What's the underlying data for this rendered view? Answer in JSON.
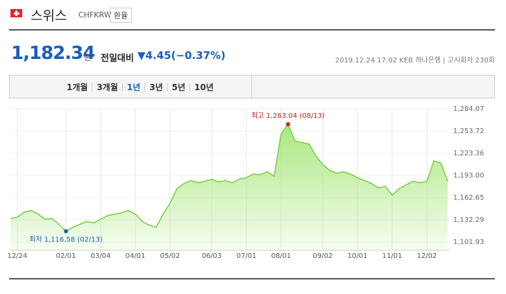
{
  "header": {
    "name": "스위스",
    "code": "CHFKRW",
    "button": "환율"
  },
  "quote": {
    "price": "1,182.34",
    "unit": "원",
    "change_label": "전일대비",
    "change": "▼4.45(−0.37%)",
    "datetime": "2019.12.24 17:02",
    "bank": "KEB 하나은행",
    "round": "고시회차 230회"
  },
  "tabs": [
    "1개월",
    "3개월",
    "1년",
    "3년",
    "5년",
    "10년"
  ],
  "chart_data": {
    "type": "area",
    "line_color": "#72cf3c",
    "fill_color": "#a6e67a",
    "grid": true,
    "categories": [
      null,
      "12/24",
      null,
      null,
      null,
      null,
      null,
      null,
      "02/01",
      null,
      null,
      null,
      null,
      "03/04",
      null,
      null,
      null,
      null,
      "04/01",
      null,
      null,
      null,
      null,
      "05/02",
      null,
      null,
      null,
      null,
      null,
      "06/03",
      null,
      null,
      null,
      null,
      "07/01",
      null,
      null,
      null,
      null,
      "08/01",
      null,
      null,
      null,
      null,
      null,
      "09/02",
      null,
      null,
      null,
      null,
      "10/01",
      null,
      null,
      null,
      null,
      "11/01",
      null,
      null,
      null,
      null,
      "12/02",
      null,
      null,
      null
    ],
    "values": [
      1134,
      1136,
      1143,
      1145,
      1140,
      1133,
      1134,
      1126,
      1116.58,
      1122,
      1126,
      1130,
      1128,
      1133,
      1138,
      1140,
      1142,
      1145,
      1140,
      1130,
      1125,
      1122,
      1140,
      1155,
      1175,
      1182,
      1186,
      1183,
      1185,
      1188,
      1184,
      1186,
      1183,
      1188,
      1190,
      1195,
      1194,
      1198,
      1192,
      1250,
      1263.04,
      1240,
      1238,
      1236,
      1220,
      1208,
      1200,
      1196,
      1198,
      1195,
      1190,
      1186,
      1182,
      1176,
      1178,
      1166,
      1175,
      1180,
      1185,
      1183,
      1185,
      1213,
      1210,
      1185
    ],
    "ylim": [
      1101.93,
      1284.07
    ],
    "yticks": [
      {
        "value": 1101.93,
        "label": "1,101.93"
      },
      {
        "value": 1132.29,
        "label": "1,132.29"
      },
      {
        "value": 1162.65,
        "label": "1,162.65"
      },
      {
        "value": 1193.0,
        "label": "1,193.00"
      },
      {
        "value": 1223.36,
        "label": "1,223.36"
      },
      {
        "value": 1253.72,
        "label": "1,253.72"
      },
      {
        "value": 1284.07,
        "label": "1,284.07"
      }
    ],
    "max_annotation": "최고 1,263.04 (08/13)",
    "min_annotation": "최저 1,116.58 (02/13)"
  }
}
